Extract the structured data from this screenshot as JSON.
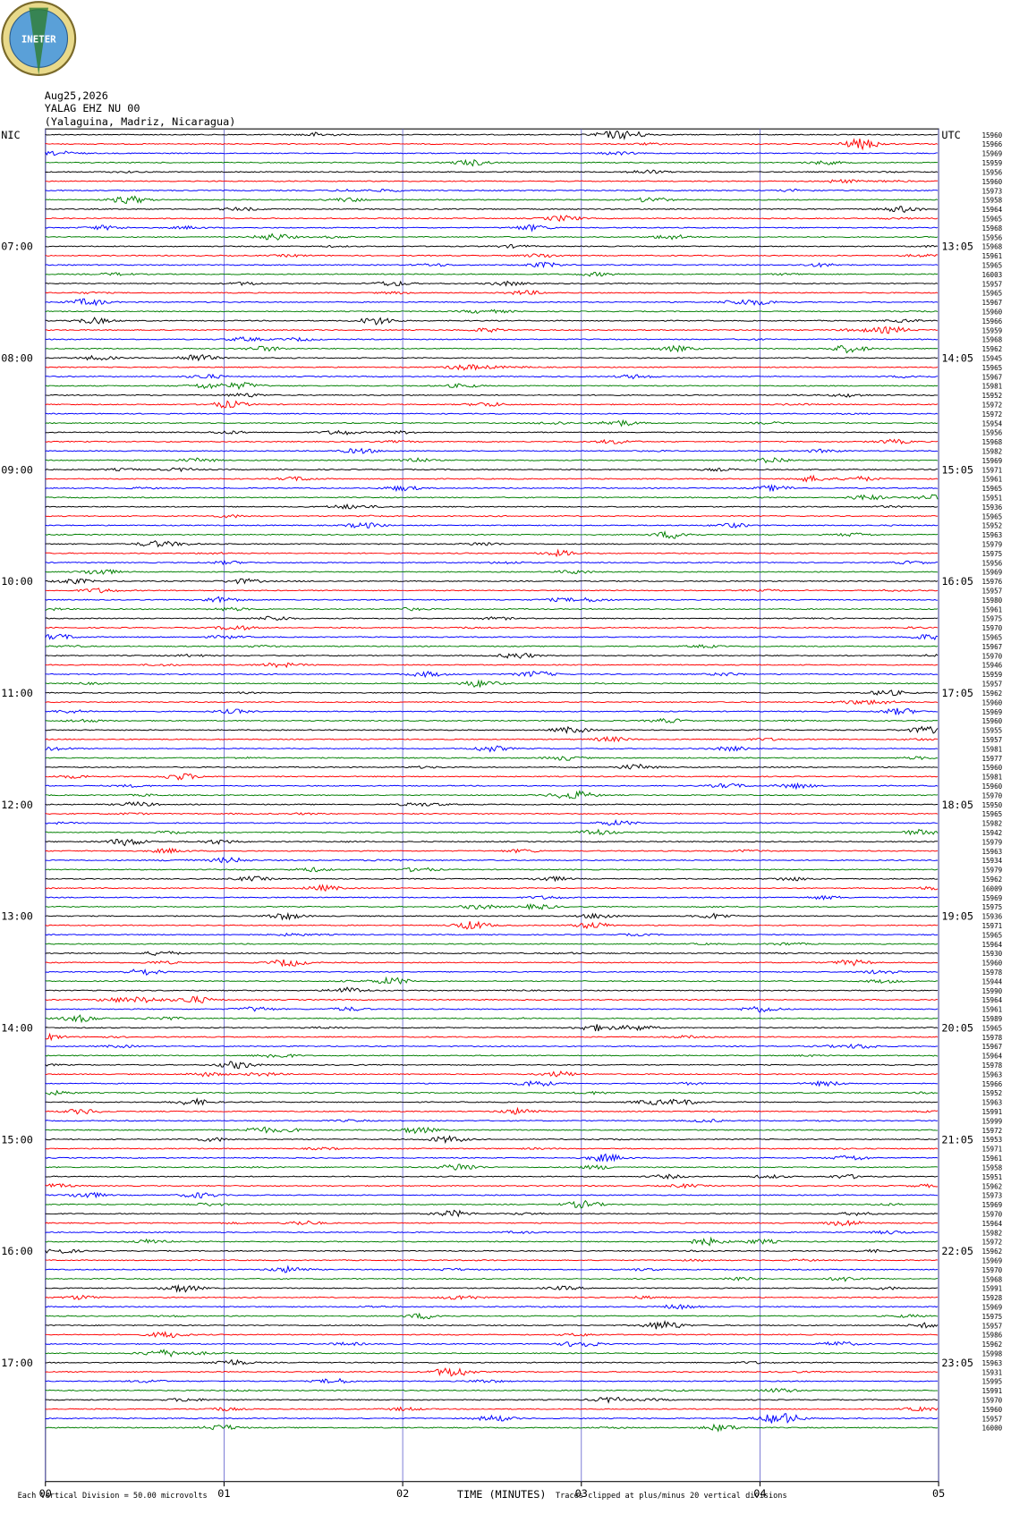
{
  "chart_data": {
    "type": "helicorder",
    "logo_text": "INETER",
    "title_lines": [
      "Aug25,2026",
      "YALAG EHZ NU 00",
      "(Yalaguina, Madriz, Nicaragua)"
    ],
    "left_labels": [
      "NIC",
      "07:00",
      "08:00",
      "09:00",
      "10:00",
      "11:00",
      "12:00",
      "13:00",
      "14:00",
      "15:00",
      "16:00",
      "17:00"
    ],
    "right_labels": [
      "UTC",
      "13:05",
      "14:05",
      "15:05",
      "16:05",
      "17:05",
      "18:05",
      "19:05",
      "20:05",
      "21:05",
      "22:05",
      "23:05"
    ],
    "trace_labels": [
      "15960",
      "15966",
      "15969",
      "15959",
      "15956",
      "15960",
      "15973",
      "15958",
      "15964",
      "15965",
      "15968",
      "15956",
      "15968",
      "15961",
      "15965",
      "16003",
      "15957",
      "15965",
      "15967",
      "15960",
      "15966",
      "15959",
      "15968",
      "15962",
      "15945",
      "15965",
      "15967",
      "15981",
      "15952",
      "15972",
      "15972",
      "15954",
      "15956",
      "15968",
      "15982",
      "15969",
      "15971",
      "15961",
      "15965",
      "15951",
      "15936",
      "15965",
      "15952",
      "15963",
      "15979",
      "15975",
      "15956",
      "15969",
      "15976",
      "15957",
      "15980",
      "15961",
      "15975",
      "15970",
      "15965",
      "15967",
      "15970",
      "15946",
      "15959",
      "15957",
      "15962",
      "15960",
      "15969",
      "15960",
      "15955",
      "15957",
      "15981",
      "15977",
      "15960",
      "15981",
      "15960",
      "15970",
      "15950",
      "15965",
      "15982",
      "15942",
      "15979",
      "15963",
      "15934",
      "15979",
      "15962",
      "16009",
      "15969",
      "15975",
      "15936",
      "15971",
      "15965",
      "15964",
      "15930",
      "15960",
      "15978",
      "15944",
      "15990",
      "15964",
      "15961",
      "15989",
      "15965",
      "15978",
      "15967",
      "15964",
      "15978",
      "15963",
      "15966",
      "15952",
      "15963",
      "15991",
      "15999",
      "15972",
      "15953",
      "15971",
      "15961",
      "15958",
      "15951",
      "15962",
      "15973",
      "15969",
      "15970",
      "15964",
      "15982",
      "15972",
      "15962",
      "15969",
      "15970",
      "15968",
      "15991",
      "15928",
      "15969",
      "15975",
      "15957",
      "15986",
      "15962",
      "15998",
      "15963",
      "15931",
      "15995",
      "15991",
      "15970",
      "15960",
      "15957",
      "16000"
    ],
    "trace_colors": [
      "#000000",
      "#ff0000",
      "#0000ff",
      "#007f00"
    ],
    "xlim": [
      0,
      5
    ],
    "xticks": [
      {
        "value": 0,
        "label": "00"
      },
      {
        "value": 1,
        "label": "01"
      },
      {
        "value": 2,
        "label": "02"
      },
      {
        "value": 3,
        "label": "03"
      },
      {
        "value": 4,
        "label": "04"
      },
      {
        "value": 5,
        "label": "05"
      }
    ],
    "xlabel": "TIME (MINUTES)",
    "scale_note": "Each Vertical Division =   50.00 microvolts",
    "clip_note": "Traces clipped at plus/minus 20 vertical divisions"
  }
}
